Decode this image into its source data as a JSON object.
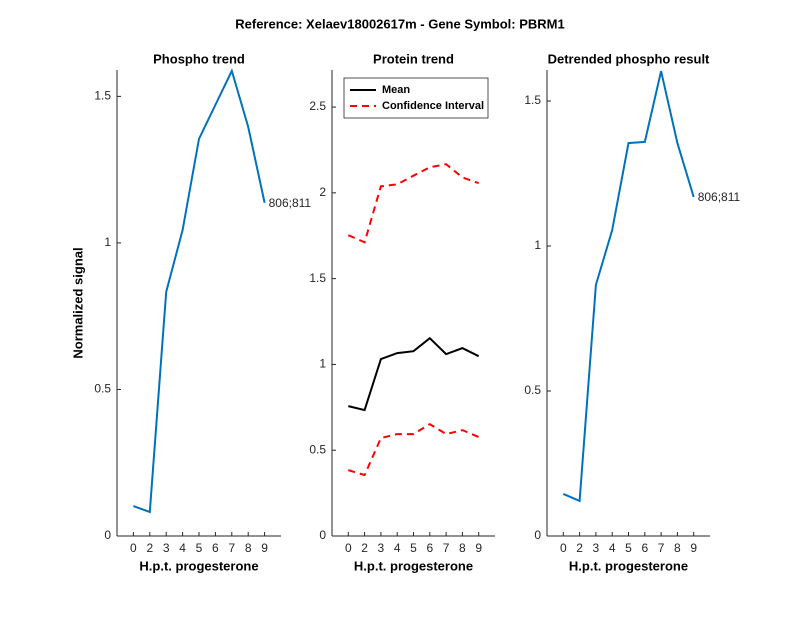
{
  "title": "Reference:  Xelaev18002617m - Gene Symbol:  PBRM1",
  "chart_data": [
    {
      "type": "line",
      "title": "Phospho trend",
      "xlabel": "H.p.t. progesterone",
      "ylabel": "Normalized signal",
      "categories": [
        "0",
        "2",
        "3",
        "4",
        "5",
        "6",
        "7",
        "8",
        "9"
      ],
      "series": [
        {
          "color": "#0072bd",
          "values": [
            0.102,
            0.082,
            0.833,
            1.044,
            1.355,
            1.471,
            1.587,
            1.396,
            1.137
          ]
        }
      ],
      "annotation": "806;811",
      "ylim": [
        0,
        1.59
      ],
      "yticks": [
        0,
        0.5,
        1,
        1.5
      ]
    },
    {
      "type": "line",
      "title": "Protein trend",
      "xlabel": "H.p.t. progesterone",
      "categories": [
        "0",
        "2",
        "3",
        "4",
        "5",
        "6",
        "7",
        "8",
        "9"
      ],
      "series": [
        {
          "name": "Mean",
          "color": "#000000",
          "dash": false,
          "values": [
            0.757,
            0.734,
            1.031,
            1.066,
            1.077,
            1.153,
            1.06,
            1.095,
            1.048
          ]
        },
        {
          "name": "Confidence Interval",
          "color": "#ff0000",
          "dash": true,
          "values": [
            1.753,
            1.712,
            2.038,
            2.05,
            2.1,
            2.149,
            2.167,
            2.09,
            2.056
          ],
          "lower": [
            0.384,
            0.355,
            0.571,
            0.594,
            0.594,
            0.652,
            0.594,
            0.617,
            0.577
          ]
        }
      ],
      "legend": "upper-left",
      "ylim": [
        0,
        2.716
      ],
      "yticks": [
        0,
        0.5,
        1,
        1.5,
        2,
        2.5
      ]
    },
    {
      "type": "line",
      "title": "Detrended phospho result",
      "xlabel": "H.p.t. progesterone",
      "categories": [
        "0",
        "2",
        "3",
        "4",
        "5",
        "6",
        "7",
        "8",
        "9"
      ],
      "series": [
        {
          "color": "#0072bd",
          "values": [
            0.145,
            0.121,
            0.866,
            1.055,
            1.355,
            1.359,
            1.603,
            1.355,
            1.169
          ]
        }
      ],
      "annotation": "806;811",
      "ylim": [
        0,
        1.607
      ],
      "yticks": [
        0,
        0.5,
        1,
        1.5
      ]
    }
  ]
}
